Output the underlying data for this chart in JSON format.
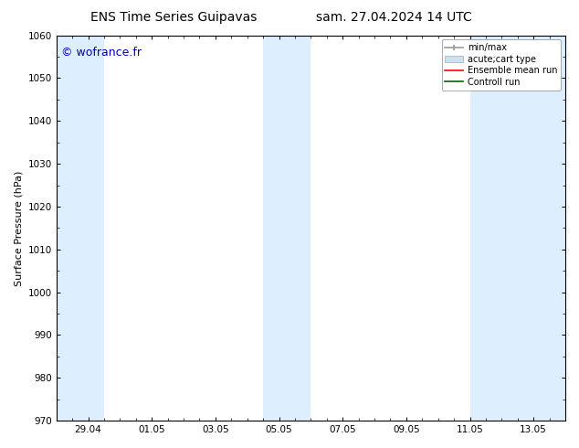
{
  "title_left": "ENS Time Series Guipavas",
  "title_right": "sam. 27.04.2024 14 UTC",
  "ylabel": "Surface Pressure (hPa)",
  "watermark": "© wofrance.fr",
  "ylim": [
    970,
    1060
  ],
  "yticks": [
    970,
    980,
    990,
    1000,
    1010,
    1020,
    1030,
    1040,
    1050,
    1060
  ],
  "xtick_labels": [
    "29.04",
    "01.05",
    "03.05",
    "05.05",
    "07.05",
    "09.05",
    "11.05",
    "13.05"
  ],
  "xtick_positions": [
    1,
    3,
    5,
    7,
    9,
    11,
    13,
    15
  ],
  "xmin": 0,
  "xmax": 16,
  "shaded_bands": [
    {
      "x_start": 0.0,
      "x_end": 1.5,
      "color": "#ddeeff"
    },
    {
      "x_start": 6.5,
      "x_end": 8.0,
      "color": "#ddeeff"
    },
    {
      "x_start": 13.0,
      "x_end": 16.0,
      "color": "#ddeeff"
    }
  ],
  "legend_items": [
    {
      "label": "min/max",
      "type": "errorbar",
      "color": "#999999"
    },
    {
      "label": "acute;cart type",
      "type": "box",
      "color": "#cce0f0"
    },
    {
      "label": "Ensemble mean run",
      "type": "line",
      "color": "#ff0000"
    },
    {
      "label": "Controll run",
      "type": "line",
      "color": "#006600"
    }
  ],
  "background_color": "#ffffff",
  "plot_bg_color": "#ffffff",
  "title_fontsize": 10,
  "label_fontsize": 8,
  "tick_fontsize": 7.5,
  "legend_fontsize": 7,
  "watermark_color": "#0000bb",
  "watermark_fontsize": 9
}
